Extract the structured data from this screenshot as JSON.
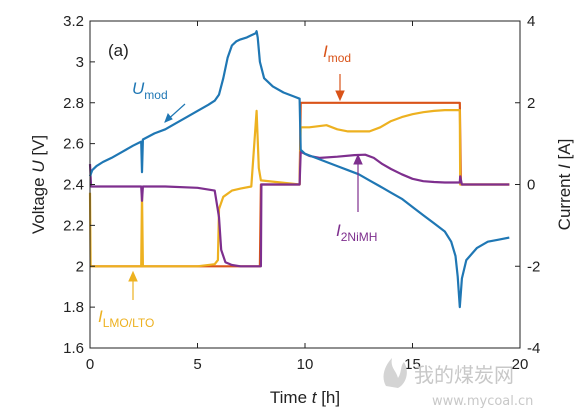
{
  "chart_data": {
    "type": "line",
    "panel_label": "(a)",
    "xlabel": "Time t [h]",
    "ylabel_left": "Voltage U [V]",
    "ylabel_right": "Current I [A]",
    "xlim": [
      0,
      20
    ],
    "ylim_left": [
      1.6,
      3.2
    ],
    "ylim_right": [
      -4,
      4
    ],
    "xticks": [
      0,
      5,
      10,
      15,
      20
    ],
    "yticks_left": [
      1.6,
      1.8,
      2,
      2.2,
      2.4,
      2.6,
      2.8,
      3,
      3.2
    ],
    "yticks_left_labels": [
      "1.6",
      "1.8",
      "2",
      "2.2",
      "2.4",
      "2.6",
      "2.8",
      "3",
      "3.2"
    ],
    "yticks_right": [
      -4,
      -2,
      0,
      2,
      4
    ],
    "yticks_right_labels": [
      "-4",
      "-2",
      "0",
      "2",
      "4"
    ],
    "grid": false,
    "series": [
      {
        "name": "U_mod",
        "axis": "left",
        "color": "#1f77b4",
        "points": [
          [
            0,
            2.44
          ],
          [
            0.1,
            2.47
          ],
          [
            0.3,
            2.49
          ],
          [
            0.6,
            2.51
          ],
          [
            1.0,
            2.53
          ],
          [
            1.5,
            2.56
          ],
          [
            2.0,
            2.59
          ],
          [
            2.38,
            2.61
          ],
          [
            2.42,
            2.46
          ],
          [
            2.46,
            2.62
          ],
          [
            3.0,
            2.65
          ],
          [
            3.5,
            2.67
          ],
          [
            4.0,
            2.7
          ],
          [
            4.5,
            2.73
          ],
          [
            5.0,
            2.76
          ],
          [
            5.5,
            2.79
          ],
          [
            5.8,
            2.81
          ],
          [
            6.0,
            2.84
          ],
          [
            6.2,
            2.92
          ],
          [
            6.4,
            3.02
          ],
          [
            6.6,
            3.08
          ],
          [
            6.8,
            3.1
          ],
          [
            7.0,
            3.11
          ],
          [
            7.3,
            3.12
          ],
          [
            7.5,
            3.13
          ],
          [
            7.7,
            3.14
          ],
          [
            7.75,
            3.15
          ],
          [
            7.8,
            3.12
          ],
          [
            7.9,
            3.0
          ],
          [
            8.1,
            2.92
          ],
          [
            8.5,
            2.88
          ],
          [
            9.0,
            2.85
          ],
          [
            9.5,
            2.83
          ],
          [
            9.75,
            2.82
          ],
          [
            9.8,
            2.57
          ],
          [
            10.0,
            2.55
          ],
          [
            10.5,
            2.53
          ],
          [
            11.0,
            2.51
          ],
          [
            11.5,
            2.49
          ],
          [
            12.0,
            2.47
          ],
          [
            12.5,
            2.45
          ],
          [
            13.0,
            2.42
          ],
          [
            13.5,
            2.39
          ],
          [
            14.0,
            2.36
          ],
          [
            14.5,
            2.33
          ],
          [
            15.0,
            2.29
          ],
          [
            15.5,
            2.25
          ],
          [
            16.0,
            2.21
          ],
          [
            16.5,
            2.17
          ],
          [
            16.8,
            2.12
          ],
          [
            17.0,
            2.05
          ],
          [
            17.1,
            1.95
          ],
          [
            17.2,
            1.8
          ],
          [
            17.3,
            1.94
          ],
          [
            17.5,
            2.03
          ],
          [
            18.0,
            2.09
          ],
          [
            18.5,
            2.12
          ],
          [
            19.0,
            2.13
          ],
          [
            19.5,
            2.14
          ]
        ]
      },
      {
        "name": "I_mod",
        "axis": "right",
        "color": "#d95319",
        "points": [
          [
            0,
            -2.0
          ],
          [
            2.38,
            -2.0
          ],
          [
            2.42,
            -2.0
          ],
          [
            7.9,
            -2.0
          ],
          [
            7.95,
            0.0
          ],
          [
            9.75,
            0.0
          ],
          [
            9.8,
            2.0
          ],
          [
            17.2,
            2.0
          ],
          [
            17.25,
            0.0
          ],
          [
            19.5,
            0.0
          ]
        ]
      },
      {
        "name": "I_LMO/LTO",
        "axis": "right",
        "color": "#edb120",
        "points": [
          [
            0,
            -0.2
          ],
          [
            0.03,
            -2.0
          ],
          [
            2.38,
            -2.0
          ],
          [
            2.42,
            -0.2
          ],
          [
            2.46,
            -2.0
          ],
          [
            5.0,
            -2.0
          ],
          [
            5.8,
            -1.95
          ],
          [
            5.95,
            -1.85
          ],
          [
            6.0,
            -0.6
          ],
          [
            6.2,
            -0.3
          ],
          [
            6.6,
            -0.15
          ],
          [
            7.0,
            -0.1
          ],
          [
            7.5,
            -0.05
          ],
          [
            7.75,
            1.8
          ],
          [
            7.85,
            0.4
          ],
          [
            7.95,
            0.1
          ],
          [
            9.75,
            0.0
          ],
          [
            9.8,
            1.4
          ],
          [
            10.2,
            1.4
          ],
          [
            11.0,
            1.45
          ],
          [
            11.5,
            1.35
          ],
          [
            12.0,
            1.3
          ],
          [
            12.5,
            1.3
          ],
          [
            13.0,
            1.3
          ],
          [
            13.5,
            1.4
          ],
          [
            14.0,
            1.55
          ],
          [
            14.5,
            1.65
          ],
          [
            15.0,
            1.72
          ],
          [
            15.5,
            1.77
          ],
          [
            16.0,
            1.8
          ],
          [
            16.5,
            1.82
          ],
          [
            17.2,
            1.82
          ],
          [
            17.22,
            0.0
          ],
          [
            17.3,
            0.0
          ],
          [
            19.5,
            0.0
          ]
        ]
      },
      {
        "name": "I_2NiMH",
        "axis": "right",
        "color": "#7e2f8e",
        "points": [
          [
            0,
            0.5
          ],
          [
            0.05,
            -0.05
          ],
          [
            0.5,
            -0.05
          ],
          [
            2.38,
            -0.05
          ],
          [
            2.42,
            -0.4
          ],
          [
            2.46,
            -0.05
          ],
          [
            3.5,
            -0.05
          ],
          [
            5.0,
            -0.08
          ],
          [
            5.8,
            -0.15
          ],
          [
            6.0,
            -0.8
          ],
          [
            6.1,
            -1.6
          ],
          [
            6.3,
            -1.9
          ],
          [
            6.6,
            -1.97
          ],
          [
            7.0,
            -2.0
          ],
          [
            7.95,
            -2.0
          ],
          [
            7.97,
            0.0
          ],
          [
            9.75,
            0.0
          ],
          [
            9.8,
            0.8
          ],
          [
            10.2,
            0.7
          ],
          [
            10.7,
            0.65
          ],
          [
            11.5,
            0.68
          ],
          [
            12.3,
            0.72
          ],
          [
            12.8,
            0.73
          ],
          [
            13.2,
            0.65
          ],
          [
            13.6,
            0.5
          ],
          [
            14.0,
            0.38
          ],
          [
            14.5,
            0.25
          ],
          [
            15.0,
            0.14
          ],
          [
            15.5,
            0.08
          ],
          [
            16.0,
            0.06
          ],
          [
            16.5,
            0.05
          ],
          [
            17.2,
            0.05
          ],
          [
            17.22,
            0.2
          ],
          [
            17.3,
            0.0
          ],
          [
            19.5,
            0.0
          ]
        ]
      }
    ],
    "annotations": [
      {
        "base": "U",
        "sub": "mod",
        "color": "#1f77b4"
      },
      {
        "base": "I",
        "sub": "mod",
        "color": "#d95319"
      },
      {
        "base": "I",
        "sub": "2NiMH",
        "color": "#7e2f8e"
      },
      {
        "base": "I",
        "sub": "LMO/LTO",
        "color": "#edb120"
      }
    ]
  },
  "watermark": {
    "text": "我的煤炭网",
    "url": "www.mycoal.cn"
  }
}
